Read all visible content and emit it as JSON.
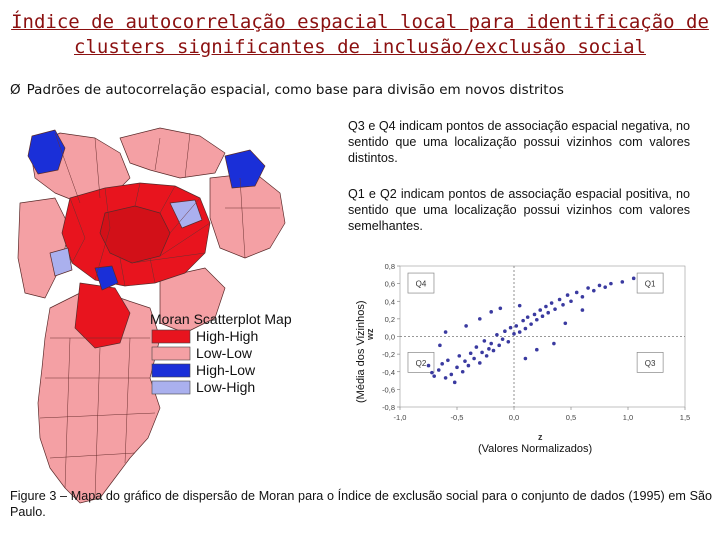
{
  "title": {
    "line1": "Índice de autocorrelação espacial local para identificação de",
    "line2": "clusters significantes de inclusão/exclusão social"
  },
  "bullet": {
    "symbol": "Ø",
    "text": "Padrões de autocorrelação espacial, como base para divisão em novos distritos"
  },
  "notes": {
    "q3q4": "Q3 e Q4 indicam pontos de associação espacial negativa, no sentido que uma localização possui vizinhos com valores distintos.",
    "q1q2": "Q1 e Q2 indicam pontos de associação espacial positiva, no sentido que uma localização possui vizinhos com valores semelhantes."
  },
  "legend": {
    "title": "Moran Scatterplot Map",
    "items": [
      {
        "label": "High-High",
        "color": "#e8141e"
      },
      {
        "label": "Low-Low",
        "color": "#f4a0a4"
      },
      {
        "label": "High-Low",
        "color": "#1a2fd8"
      },
      {
        "label": "Low-High",
        "color": "#aab0ee"
      }
    ]
  },
  "chart_data": {
    "type": "scatter",
    "xlabel": "z",
    "xlabel_note": "(Valores Normalizados)",
    "ylabel": "wz",
    "ylabel_note": "(Média dos Vizinhos)",
    "xlim": [
      -1.0,
      1.5
    ],
    "ylim": [
      -0.8,
      0.8
    ],
    "xticks": [
      "-1,0",
      "-0,5",
      "0,0",
      "0,5",
      "1,0",
      "1,5"
    ],
    "yticks": [
      "0,8",
      "0,6",
      "0,4",
      "0,2",
      "0,0",
      "-0,2",
      "-0,4",
      "-0,6",
      "-0,8"
    ],
    "quadrant_labels": [
      "Q4",
      "Q1",
      "Q2",
      "Q3"
    ],
    "points": [
      [
        -0.75,
        -0.33
      ],
      [
        -0.72,
        -0.41
      ],
      [
        -0.7,
        -0.45
      ],
      [
        -0.66,
        -0.38
      ],
      [
        -0.63,
        -0.31
      ],
      [
        -0.6,
        -0.47
      ],
      [
        -0.58,
        -0.27
      ],
      [
        -0.55,
        -0.43
      ],
      [
        -0.52,
        -0.52
      ],
      [
        -0.5,
        -0.35
      ],
      [
        -0.48,
        -0.22
      ],
      [
        -0.45,
        -0.4
      ],
      [
        -0.43,
        -0.28
      ],
      [
        -0.4,
        -0.33
      ],
      [
        -0.38,
        -0.19
      ],
      [
        -0.35,
        -0.25
      ],
      [
        -0.33,
        -0.12
      ],
      [
        -0.3,
        -0.3
      ],
      [
        -0.28,
        -0.18
      ],
      [
        -0.26,
        -0.05
      ],
      [
        -0.24,
        -0.22
      ],
      [
        -0.22,
        -0.14
      ],
      [
        -0.2,
        -0.08
      ],
      [
        -0.18,
        -0.16
      ],
      [
        -0.15,
        0.02
      ],
      [
        -0.13,
        -0.1
      ],
      [
        -0.1,
        -0.03
      ],
      [
        -0.08,
        0.06
      ],
      [
        -0.05,
        -0.06
      ],
      [
        -0.03,
        0.1
      ],
      [
        0.0,
        0.03
      ],
      [
        0.02,
        0.12
      ],
      [
        0.05,
        0.05
      ],
      [
        0.08,
        0.18
      ],
      [
        0.1,
        0.09
      ],
      [
        0.12,
        0.22
      ],
      [
        0.15,
        0.14
      ],
      [
        0.18,
        0.25
      ],
      [
        0.2,
        0.19
      ],
      [
        0.23,
        0.3
      ],
      [
        0.25,
        0.23
      ],
      [
        0.28,
        0.34
      ],
      [
        0.3,
        0.27
      ],
      [
        0.33,
        0.38
      ],
      [
        0.36,
        0.31
      ],
      [
        0.4,
        0.42
      ],
      [
        0.43,
        0.36
      ],
      [
        0.47,
        0.47
      ],
      [
        0.5,
        0.4
      ],
      [
        0.55,
        0.5
      ],
      [
        0.6,
        0.45
      ],
      [
        0.65,
        0.55
      ],
      [
        0.7,
        0.52
      ],
      [
        0.75,
        0.58
      ],
      [
        0.8,
        0.56
      ],
      [
        0.85,
        0.6
      ],
      [
        0.95,
        0.62
      ],
      [
        1.05,
        0.66
      ],
      [
        -0.42,
        0.12
      ],
      [
        -0.3,
        0.2
      ],
      [
        -0.2,
        0.28
      ],
      [
        -0.12,
        0.32
      ],
      [
        0.05,
        0.35
      ],
      [
        0.2,
        -0.15
      ],
      [
        0.35,
        -0.08
      ],
      [
        0.1,
        -0.25
      ],
      [
        -0.6,
        0.05
      ],
      [
        -0.65,
        -0.1
      ],
      [
        0.45,
        0.15
      ],
      [
        0.6,
        0.3
      ]
    ]
  },
  "caption": "Figure 3 – Mapa do gráfico de dispersão de Moran para o Índice de exclusão social para o conjunto de dados (1995) em São Paulo."
}
